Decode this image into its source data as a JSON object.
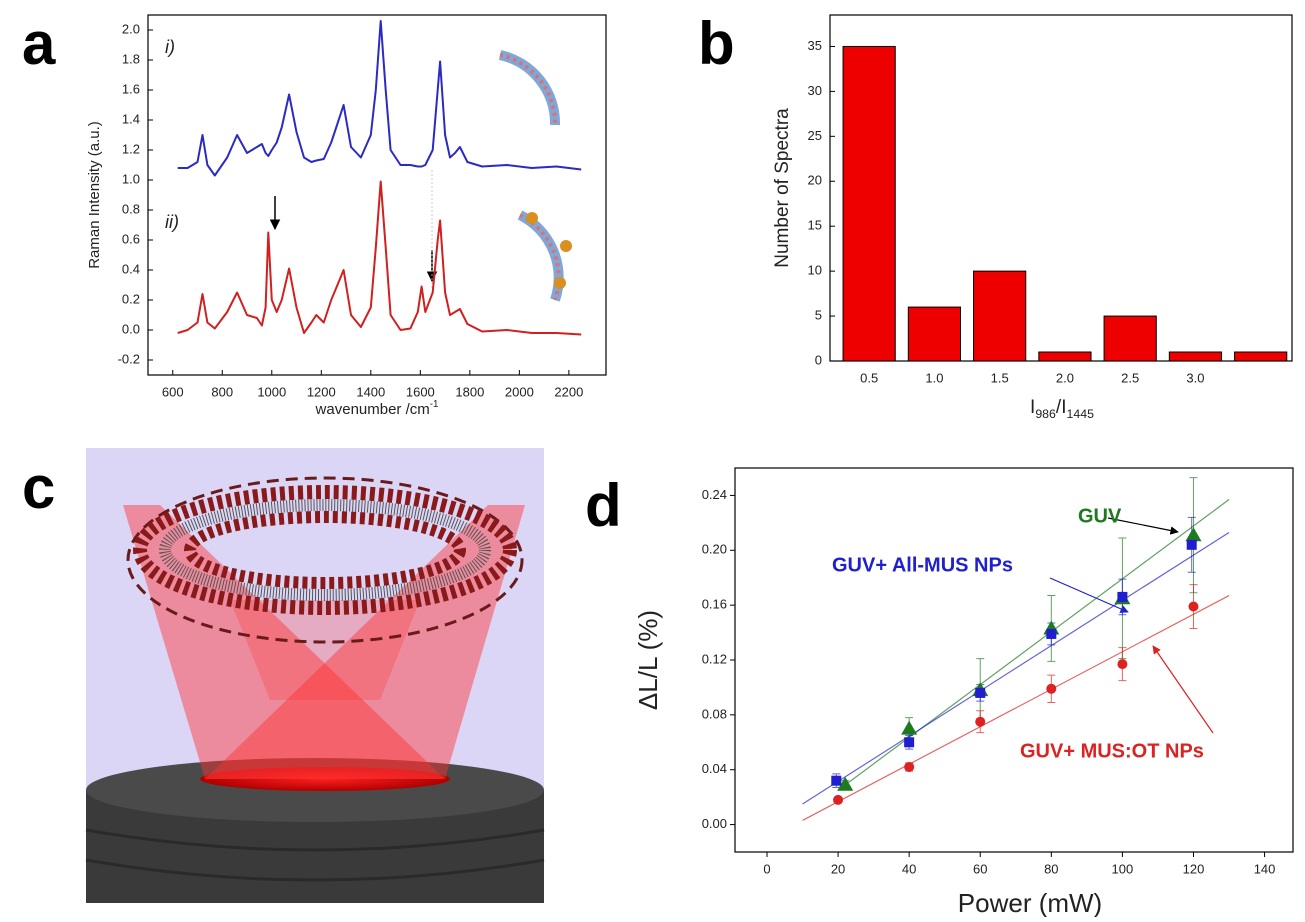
{
  "panel_labels": [
    "a",
    "b",
    "c",
    "d"
  ],
  "chart_data": [
    {
      "type": "line",
      "y_label": "Raman Intensity (a.u.)",
      "x_label": [
        {
          "text": "wavenumber /cm"
        },
        {
          "text": "-1",
          "sup": true
        }
      ],
      "xlim": [
        500,
        2350
      ],
      "xticks": [
        600,
        800,
        1000,
        1200,
        1400,
        1600,
        1800,
        2000,
        2200
      ],
      "ylim": [
        -0.3,
        2.1
      ],
      "yticks": [
        -0.2,
        {
          "value": 0,
          "label": "0.0"
        },
        0.2,
        0.4,
        0.6,
        0.8,
        {
          "value": 1,
          "label": "1.0"
        },
        1.2,
        1.4,
        1.6,
        1.8,
        {
          "value": 2,
          "label": "2.0"
        }
      ],
      "x": [
        620,
        660,
        700,
        720,
        740,
        770,
        820,
        860,
        900,
        940,
        960,
        975,
        986,
        1000,
        1020,
        1040,
        1070,
        1100,
        1130,
        1160,
        1180,
        1210,
        1240,
        1260,
        1290,
        1320,
        1360,
        1400,
        1420,
        1440,
        1460,
        1480,
        1520,
        1560,
        1590,
        1605,
        1620,
        1650,
        1670,
        1680,
        1700,
        1720,
        1740,
        1760,
        1790,
        1850,
        1950,
        2050,
        2150,
        2250
      ],
      "series": [
        {
          "name": "i)",
          "color": "#2b2bc4",
          "values": [
            1.08,
            1.08,
            1.12,
            1.3,
            1.1,
            1.03,
            1.15,
            1.3,
            1.18,
            1.22,
            1.24,
            1.18,
            1.16,
            1.2,
            1.25,
            1.35,
            1.57,
            1.32,
            1.15,
            1.12,
            1.13,
            1.14,
            1.25,
            1.35,
            1.5,
            1.22,
            1.15,
            1.3,
            1.6,
            2.06,
            1.6,
            1.2,
            1.1,
            1.1,
            1.09,
            1.09,
            1.1,
            1.2,
            1.6,
            1.79,
            1.3,
            1.15,
            1.18,
            1.22,
            1.12,
            1.09,
            1.1,
            1.08,
            1.09,
            1.07
          ]
        },
        {
          "name": "ii)",
          "color": "#d02020",
          "values": [
            -0.02,
            0.0,
            0.05,
            0.24,
            0.05,
            0.01,
            0.12,
            0.25,
            0.1,
            0.08,
            0.03,
            0.15,
            0.65,
            0.2,
            0.12,
            0.2,
            0.41,
            0.15,
            -0.02,
            0.05,
            0.1,
            0.05,
            0.2,
            0.28,
            0.4,
            0.1,
            0.02,
            0.15,
            0.55,
            0.99,
            0.55,
            0.1,
            0.0,
            0.01,
            0.12,
            0.29,
            0.12,
            0.25,
            0.6,
            0.73,
            0.25,
            0.1,
            0.12,
            0.14,
            0.04,
            -0.01,
            0.0,
            -0.02,
            -0.02,
            -0.03
          ]
        }
      ]
    },
    {
      "type": "bar",
      "y_label": "Number of Spectra",
      "x_label": [
        {
          "text": "I"
        },
        {
          "text": "986",
          "sub": true
        },
        {
          "text": "/I"
        },
        {
          "text": "1445",
          "sub": true
        }
      ],
      "x": [
        0.5,
        1.0,
        1.5,
        2.0,
        2.5,
        3.0,
        3.5
      ],
      "values": [
        35,
        6,
        10,
        1,
        5,
        1,
        1
      ],
      "bar_width": 0.4,
      "color": "#ee0000",
      "xlim": [
        0.2,
        3.74
      ],
      "xticks": [
        0.5,
        {
          "value": 1,
          "label": "1.0"
        },
        1.5,
        {
          "value": 2,
          "label": "2.0"
        },
        2.5,
        {
          "value": 3,
          "label": "3.0"
        }
      ],
      "ylim": [
        0,
        38.5
      ],
      "yticks": [
        0,
        5,
        10,
        15,
        20,
        25,
        30,
        35
      ]
    },
    {
      "type": "scatter",
      "y_label": "ΔL/L (%)",
      "x_label": "Power (mW)",
      "xlim": [
        -9,
        148
      ],
      "xticks": [
        0,
        20,
        40,
        60,
        80,
        100,
        120,
        140
      ],
      "ylim": [
        -0.02,
        0.26
      ],
      "yticks": [
        {
          "value": 0,
          "label": "0.00"
        },
        {
          "value": 0.04,
          "label": "0.04"
        },
        {
          "value": 0.08,
          "label": "0.08"
        },
        {
          "value": 0.12,
          "label": "0.12"
        },
        {
          "value": 0.16,
          "label": "0.16"
        },
        {
          "value": 0.2,
          "label": "0.20"
        },
        {
          "value": 0.24,
          "label": "0.24"
        }
      ],
      "series": [
        {
          "name": "GUV",
          "color": "#1e7a1e",
          "marker": "triangle",
          "x": [
            22,
            40,
            60,
            80,
            100,
            120
          ],
          "values": [
            0.029,
            0.07,
            0.098,
            0.143,
            0.165,
            0.211
          ],
          "errors": [
            0.003,
            0.008,
            0.023,
            0.024,
            0.044,
            0.042
          ],
          "fit": {
            "x": [
              20,
              130
            ],
            "values": [
              0.025,
              0.237
            ]
          }
        },
        {
          "name": "GUV+ All-MUS NPs",
          "color": "#1f1fd0",
          "marker": "square",
          "x": [
            19.5,
            40,
            60,
            80,
            100,
            119.5
          ],
          "values": [
            0.032,
            0.06,
            0.096,
            0.139,
            0.166,
            0.204
          ],
          "errors": [
            0.005,
            0.005,
            0.006,
            0.008,
            0.013,
            0.02
          ],
          "fit": {
            "x": [
              10,
              130
            ],
            "values": [
              0.015,
              0.213
            ]
          }
        },
        {
          "name": "GUV+ MUS:OT NPs",
          "color": "#dd2222",
          "marker": "circle",
          "x": [
            20,
            40,
            60,
            80,
            100,
            120
          ],
          "values": [
            0.018,
            0.042,
            0.075,
            0.099,
            0.117,
            0.159
          ],
          "errors": [
            0.002,
            0.003,
            0.008,
            0.01,
            0.012,
            0.016
          ],
          "fit": {
            "x": [
              10,
              130
            ],
            "values": [
              0.003,
              0.167
            ]
          }
        }
      ]
    }
  ]
}
